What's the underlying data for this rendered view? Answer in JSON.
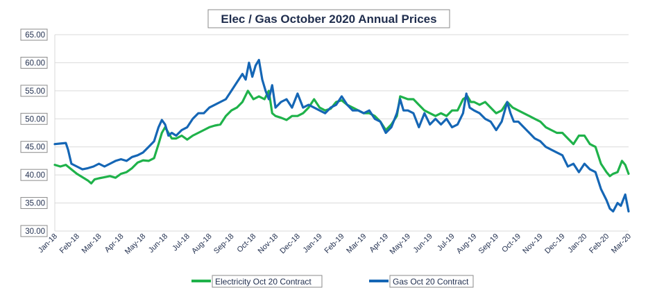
{
  "chart_data": {
    "type": "line",
    "title": "Elec / Gas October 2020 Annual Prices",
    "xlabel": "",
    "ylabel": "",
    "ylim": [
      30,
      65
    ],
    "yticks": [
      "30.00",
      "35.00",
      "40.00",
      "45.00",
      "50.00",
      "55.00",
      "60.00",
      "65.00"
    ],
    "categories": [
      "Jan-18",
      "Feb-18",
      "Mar-18",
      "Apr-18",
      "May-18",
      "Jun-18",
      "Jul-18",
      "Aug-18",
      "Sep-18",
      "Oct-18",
      "Nov-18",
      "Dec-18",
      "Jan-19",
      "Feb-19",
      "Mar-19",
      "Apr-19",
      "May-19",
      "Jun-19",
      "Jul-19",
      "Aug-19",
      "Sep-19",
      "Oct-19",
      "Nov-19",
      "Dec-19",
      "Jan-20",
      "Feb-20",
      "Mar-20"
    ],
    "grid": true,
    "legend_position": "bottom",
    "series": [
      {
        "name": "Electricity Oct 20 Contract",
        "color": "#1fb24a",
        "points": [
          [
            0,
            41.8
          ],
          [
            0.25,
            41.5
          ],
          [
            0.5,
            41.8
          ],
          [
            0.75,
            41.0
          ],
          [
            1,
            40.2
          ],
          [
            1.25,
            39.6
          ],
          [
            1.5,
            39.0
          ],
          [
            1.65,
            38.5
          ],
          [
            1.8,
            39.2
          ],
          [
            2,
            39.4
          ],
          [
            2.25,
            39.6
          ],
          [
            2.5,
            39.8
          ],
          [
            2.75,
            39.5
          ],
          [
            3,
            40.2
          ],
          [
            3.25,
            40.5
          ],
          [
            3.5,
            41.2
          ],
          [
            3.75,
            42.2
          ],
          [
            4,
            42.6
          ],
          [
            4.25,
            42.5
          ],
          [
            4.5,
            43.0
          ],
          [
            4.7,
            45.5
          ],
          [
            4.85,
            47.5
          ],
          [
            5,
            48.5
          ],
          [
            5.15,
            47.5
          ],
          [
            5.3,
            46.5
          ],
          [
            5.5,
            46.5
          ],
          [
            5.75,
            47.0
          ],
          [
            6,
            46.3
          ],
          [
            6.25,
            47.0
          ],
          [
            6.5,
            47.5
          ],
          [
            6.75,
            48.0
          ],
          [
            7,
            48.5
          ],
          [
            7.25,
            48.8
          ],
          [
            7.5,
            49.0
          ],
          [
            7.75,
            50.5
          ],
          [
            8,
            51.5
          ],
          [
            8.25,
            52.0
          ],
          [
            8.5,
            53.0
          ],
          [
            8.75,
            55.0
          ],
          [
            9,
            53.5
          ],
          [
            9.25,
            54.0
          ],
          [
            9.5,
            53.5
          ],
          [
            9.7,
            55.0
          ],
          [
            9.85,
            51.0
          ],
          [
            10,
            50.5
          ],
          [
            10.25,
            50.2
          ],
          [
            10.5,
            49.8
          ],
          [
            10.75,
            50.5
          ],
          [
            11,
            50.5
          ],
          [
            11.25,
            51.0
          ],
          [
            11.5,
            52.0
          ],
          [
            11.75,
            53.5
          ],
          [
            12,
            52.0
          ],
          [
            12.25,
            51.5
          ],
          [
            12.5,
            51.8
          ],
          [
            12.75,
            53.0
          ],
          [
            13,
            53.3
          ],
          [
            13.25,
            52.5
          ],
          [
            13.5,
            52.0
          ],
          [
            13.75,
            51.5
          ],
          [
            14,
            51.0
          ],
          [
            14.25,
            51.0
          ],
          [
            14.5,
            50.5
          ],
          [
            14.75,
            49.5
          ],
          [
            15,
            48.0
          ],
          [
            15.25,
            49.0
          ],
          [
            15.5,
            50.5
          ],
          [
            15.65,
            54.0
          ],
          [
            15.8,
            53.8
          ],
          [
            16,
            53.5
          ],
          [
            16.25,
            53.5
          ],
          [
            16.5,
            52.5
          ],
          [
            16.75,
            51.5
          ],
          [
            17,
            51.0
          ],
          [
            17.25,
            50.5
          ],
          [
            17.5,
            51.0
          ],
          [
            17.75,
            50.5
          ],
          [
            18,
            51.5
          ],
          [
            18.25,
            51.5
          ],
          [
            18.5,
            53.5
          ],
          [
            18.7,
            54.0
          ],
          [
            18.85,
            53.0
          ],
          [
            19,
            53.0
          ],
          [
            19.25,
            52.5
          ],
          [
            19.5,
            53.0
          ],
          [
            19.75,
            52.0
          ],
          [
            20,
            51.0
          ],
          [
            20.25,
            51.5
          ],
          [
            20.5,
            53.0
          ],
          [
            20.75,
            52.0
          ],
          [
            21,
            51.5
          ],
          [
            21.25,
            51.0
          ],
          [
            21.5,
            50.5
          ],
          [
            21.75,
            50.0
          ],
          [
            22,
            49.5
          ],
          [
            22.25,
            48.5
          ],
          [
            22.5,
            48.0
          ],
          [
            22.75,
            47.5
          ],
          [
            23,
            47.5
          ],
          [
            23.25,
            46.5
          ],
          [
            23.5,
            45.5
          ],
          [
            23.75,
            47.0
          ],
          [
            24,
            47.0
          ],
          [
            24.25,
            45.5
          ],
          [
            24.5,
            45.0
          ],
          [
            24.75,
            42.0
          ],
          [
            25,
            40.5
          ],
          [
            25.15,
            39.8
          ],
          [
            25.3,
            40.2
          ],
          [
            25.5,
            40.5
          ],
          [
            25.7,
            42.5
          ],
          [
            25.85,
            41.8
          ],
          [
            26,
            40.2
          ]
        ]
      },
      {
        "name": "Gas Oct 20 Contract",
        "color": "#1566b5",
        "points": [
          [
            0,
            45.5
          ],
          [
            0.25,
            45.6
          ],
          [
            0.5,
            45.7
          ],
          [
            0.6,
            44.5
          ],
          [
            0.75,
            42.0
          ],
          [
            1,
            41.5
          ],
          [
            1.25,
            41.0
          ],
          [
            1.5,
            41.2
          ],
          [
            1.75,
            41.5
          ],
          [
            2,
            42.0
          ],
          [
            2.25,
            41.5
          ],
          [
            2.5,
            42.0
          ],
          [
            2.75,
            42.5
          ],
          [
            3,
            42.8
          ],
          [
            3.25,
            42.5
          ],
          [
            3.5,
            43.2
          ],
          [
            3.75,
            43.5
          ],
          [
            4,
            44.0
          ],
          [
            4.25,
            45.0
          ],
          [
            4.5,
            46.0
          ],
          [
            4.7,
            48.5
          ],
          [
            4.85,
            49.8
          ],
          [
            5,
            49.0
          ],
          [
            5.15,
            47.0
          ],
          [
            5.3,
            47.5
          ],
          [
            5.5,
            47.0
          ],
          [
            5.75,
            48.0
          ],
          [
            6,
            48.5
          ],
          [
            6.25,
            50.0
          ],
          [
            6.5,
            51.0
          ],
          [
            6.75,
            51.0
          ],
          [
            7,
            52.0
          ],
          [
            7.25,
            52.5
          ],
          [
            7.5,
            53.0
          ],
          [
            7.75,
            53.5
          ],
          [
            8,
            55.0
          ],
          [
            8.25,
            56.5
          ],
          [
            8.5,
            58.0
          ],
          [
            8.65,
            57.0
          ],
          [
            8.8,
            60.0
          ],
          [
            8.95,
            57.5
          ],
          [
            9.1,
            59.5
          ],
          [
            9.25,
            60.5
          ],
          [
            9.4,
            57.0
          ],
          [
            9.55,
            55.0
          ],
          [
            9.7,
            53.5
          ],
          [
            9.85,
            56.0
          ],
          [
            10,
            52.0
          ],
          [
            10.25,
            53.0
          ],
          [
            10.5,
            53.5
          ],
          [
            10.75,
            52.0
          ],
          [
            11,
            54.5
          ],
          [
            11.25,
            52.0
          ],
          [
            11.5,
            52.5
          ],
          [
            11.75,
            52.0
          ],
          [
            12,
            51.5
          ],
          [
            12.25,
            51.0
          ],
          [
            12.5,
            52.0
          ],
          [
            12.75,
            52.5
          ],
          [
            13,
            54.0
          ],
          [
            13.25,
            52.5
          ],
          [
            13.5,
            51.5
          ],
          [
            13.75,
            51.5
          ],
          [
            14,
            51.0
          ],
          [
            14.25,
            51.5
          ],
          [
            14.5,
            50.0
          ],
          [
            14.75,
            49.5
          ],
          [
            15,
            47.5
          ],
          [
            15.25,
            48.5
          ],
          [
            15.5,
            51.0
          ],
          [
            15.65,
            53.5
          ],
          [
            15.8,
            51.5
          ],
          [
            16,
            51.5
          ],
          [
            16.25,
            51.0
          ],
          [
            16.5,
            48.5
          ],
          [
            16.75,
            51.0
          ],
          [
            17,
            49.0
          ],
          [
            17.25,
            50.0
          ],
          [
            17.5,
            49.0
          ],
          [
            17.75,
            50.0
          ],
          [
            18,
            48.5
          ],
          [
            18.25,
            49.0
          ],
          [
            18.5,
            51.0
          ],
          [
            18.65,
            54.5
          ],
          [
            18.8,
            52.0
          ],
          [
            19,
            51.5
          ],
          [
            19.25,
            51.0
          ],
          [
            19.5,
            50.0
          ],
          [
            19.75,
            49.5
          ],
          [
            20,
            48.0
          ],
          [
            20.25,
            49.5
          ],
          [
            20.5,
            53.0
          ],
          [
            20.65,
            51.0
          ],
          [
            20.8,
            49.5
          ],
          [
            21,
            49.5
          ],
          [
            21.25,
            48.5
          ],
          [
            21.5,
            47.5
          ],
          [
            21.75,
            46.5
          ],
          [
            22,
            46.0
          ],
          [
            22.25,
            45.0
          ],
          [
            22.5,
            44.5
          ],
          [
            22.75,
            44.0
          ],
          [
            23,
            43.5
          ],
          [
            23.25,
            41.5
          ],
          [
            23.5,
            42.0
          ],
          [
            23.75,
            40.5
          ],
          [
            24,
            42.0
          ],
          [
            24.25,
            41.0
          ],
          [
            24.5,
            40.5
          ],
          [
            24.75,
            37.5
          ],
          [
            25,
            35.5
          ],
          [
            25.15,
            34.0
          ],
          [
            25.3,
            33.5
          ],
          [
            25.5,
            35.0
          ],
          [
            25.65,
            34.5
          ],
          [
            25.85,
            36.5
          ],
          [
            26,
            33.5
          ]
        ]
      }
    ]
  }
}
